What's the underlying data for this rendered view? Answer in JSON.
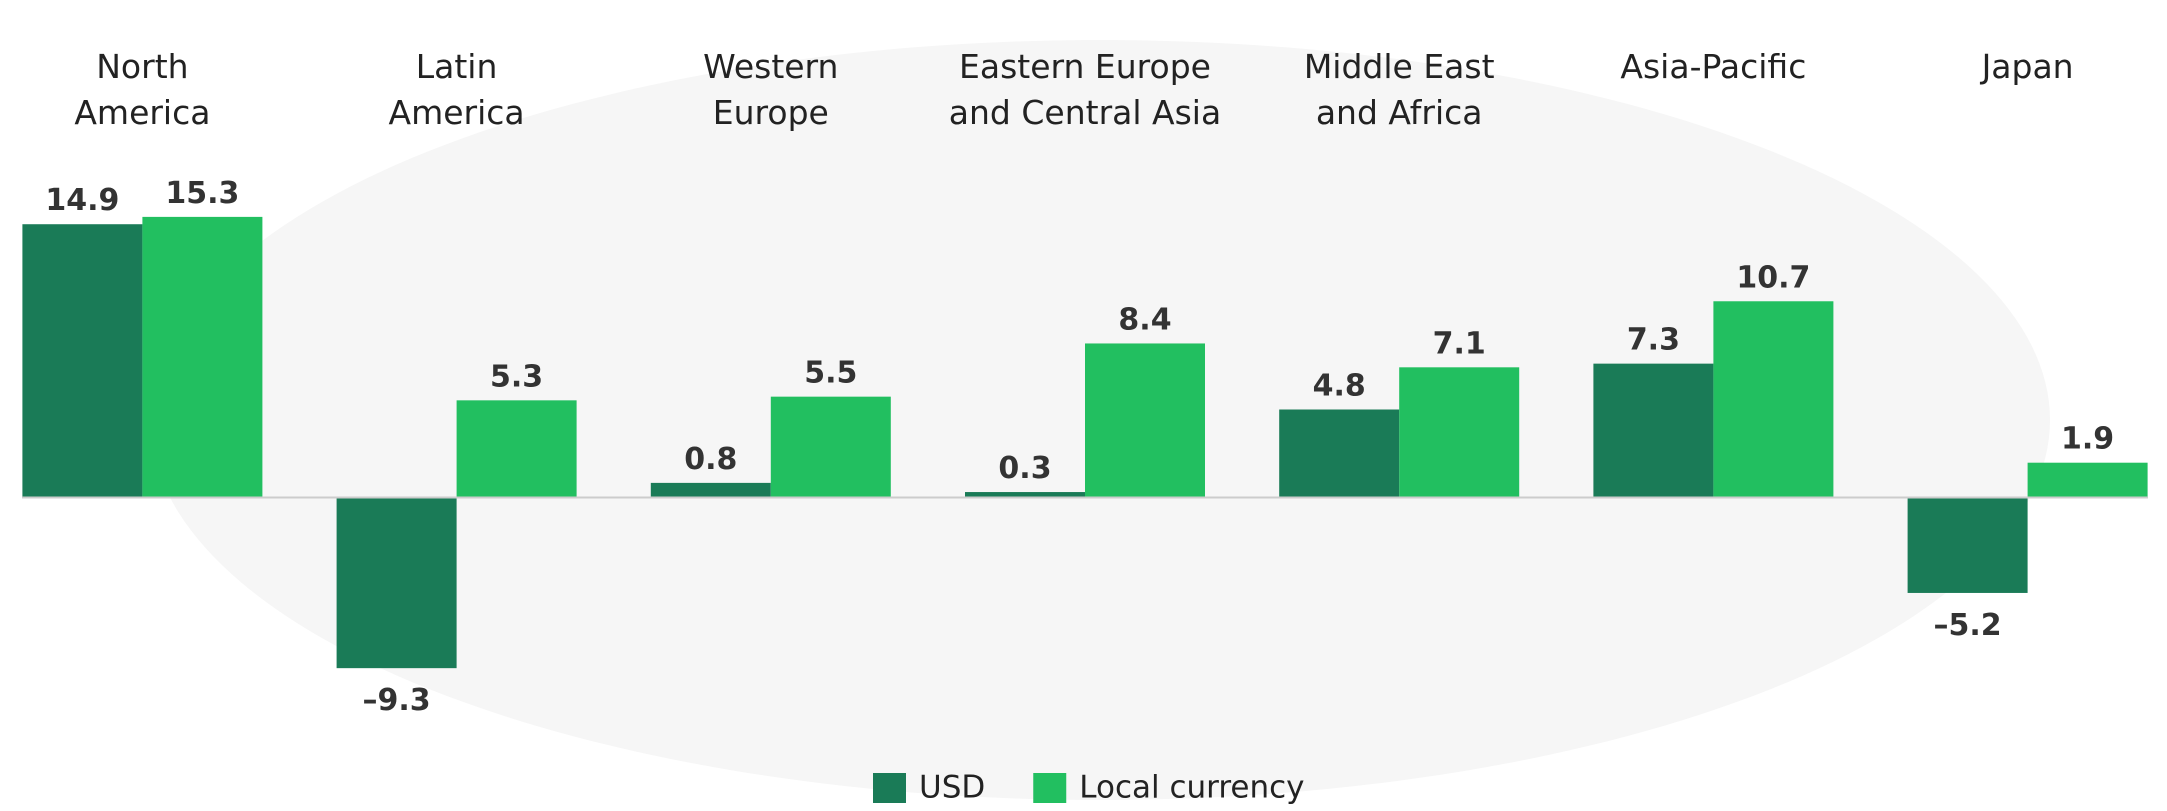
{
  "chart_data": {
    "type": "bar",
    "categories": [
      "North\nAmerica",
      "Latin\nAmerica",
      "Western\nEurope",
      "Eastern Europe\nand Central Asia",
      "Middle East\nand Africa",
      "Asia-Pacific",
      "Japan"
    ],
    "series": [
      {
        "name": "USD",
        "color": "#1a7b57",
        "values": [
          14.9,
          -9.3,
          0.8,
          0.3,
          4.8,
          7.3,
          -5.2
        ],
        "value_labels": [
          "14.9",
          "–9.3",
          "0.8",
          "0.3",
          "4.8",
          "7.3",
          "–5.2"
        ]
      },
      {
        "name": "Local currency",
        "color": "#22bf60",
        "values": [
          15.3,
          5.3,
          5.5,
          8.4,
          7.1,
          10.7,
          1.9
        ]
      }
    ],
    "ylim": [
      -10,
      17
    ]
  }
}
